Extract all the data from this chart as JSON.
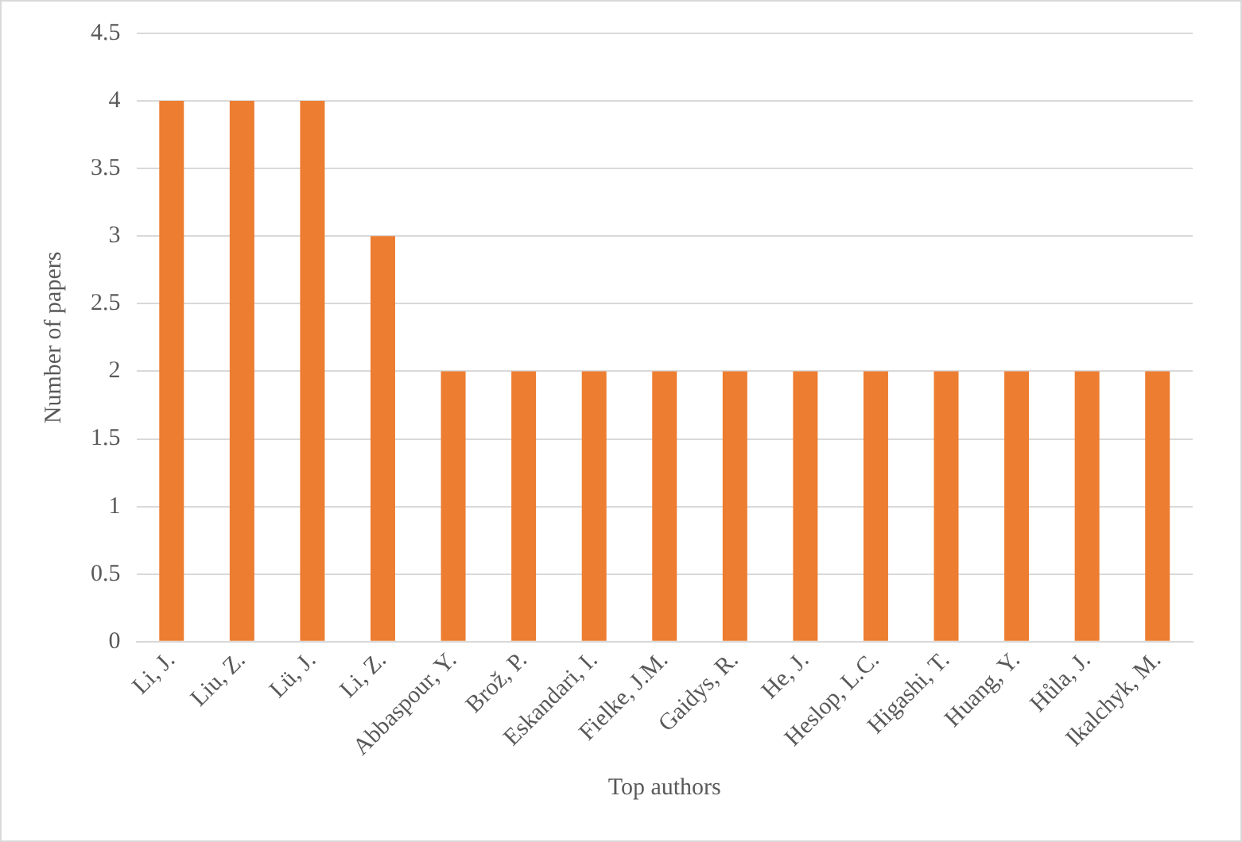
{
  "chart_data": {
    "type": "bar",
    "xlabel": "Top authors",
    "ylabel": "Number of papers",
    "categories": [
      "Li, J.",
      "Liu, Z.",
      "Lü, J.",
      "Li, Z.",
      "Abbaspour, Y.",
      "Brož, P.",
      "Eskandari, I.",
      "Fielke, J.M.",
      "Gaidys, R.",
      "He, J.",
      "Heslop, L.C.",
      "Higashi, T.",
      "Huang, Y.",
      "Hůla, J.",
      "Ikalchyk, M."
    ],
    "values": [
      4,
      4,
      4,
      3,
      2,
      2,
      2,
      2,
      2,
      2,
      2,
      2,
      2,
      2,
      2
    ],
    "color": "#ed7d31",
    "ylim": [
      0,
      4.5
    ],
    "yticks": [
      0,
      0.5,
      1,
      1.5,
      2,
      2.5,
      3,
      3.5,
      4,
      4.5
    ],
    "grid": "y",
    "legend": false
  }
}
